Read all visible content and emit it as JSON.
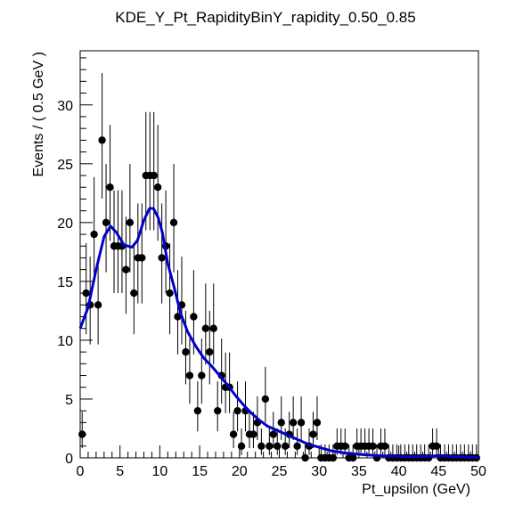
{
  "chart_data": {
    "type": "scatter",
    "title": "KDE_Y_Pt_RapidityBinY_rapidity_0.50_0.85",
    "xlabel": "Pt_upsilon (GeV)",
    "ylabel": "Events / ( 0.5 GeV )",
    "xlim": [
      0,
      50
    ],
    "ylim": [
      0,
      34.6
    ],
    "x_ticks": [
      0,
      5,
      10,
      15,
      20,
      25,
      30,
      35,
      40,
      45,
      50
    ],
    "y_ticks": [
      0,
      5,
      10,
      15,
      20,
      25,
      30
    ],
    "grid": false,
    "legend": "none",
    "colors": {
      "points": "#000000",
      "curve": "#0000cc",
      "axes": "#000000"
    },
    "series": [
      {
        "kind": "points_with_errors",
        "x": [
          0.25,
          0.75,
          1.25,
          1.75,
          2.25,
          2.75,
          3.25,
          3.75,
          4.25,
          4.75,
          5.25,
          5.75,
          6.25,
          6.75,
          7.25,
          7.75,
          8.25,
          8.75,
          9.25,
          9.75,
          10.25,
          10.75,
          11.25,
          11.75,
          12.25,
          12.75,
          13.25,
          13.75,
          14.25,
          14.75,
          15.25,
          15.75,
          16.25,
          16.75,
          17.25,
          17.75,
          18.25,
          18.75,
          19.25,
          19.75,
          20.25,
          20.75,
          21.25,
          21.75,
          22.25,
          22.75,
          23.25,
          23.75,
          24.25,
          24.75,
          25.25,
          25.75,
          26.25,
          26.75,
          27.25,
          27.75,
          28.25,
          28.75,
          29.25,
          29.75,
          30.25,
          30.75,
          31.25,
          31.75,
          32.25,
          32.75,
          33.25,
          33.75,
          34.25,
          34.75,
          35.25,
          35.75,
          36.25,
          36.75,
          37.25,
          37.75,
          38.25,
          38.75,
          39.25,
          39.75,
          40.25,
          40.75,
          41.25,
          41.75,
          42.25,
          42.75,
          43.25,
          43.75,
          44.25,
          44.75,
          45.25,
          45.75,
          46.25,
          46.75,
          47.25,
          47.75,
          48.25,
          48.75,
          49.25,
          49.75
        ],
        "y": [
          2,
          14,
          13,
          19,
          13,
          27,
          20,
          23,
          18,
          18,
          18,
          16,
          20,
          14,
          17,
          17,
          24,
          24,
          24,
          23,
          17,
          18,
          14,
          20,
          12,
          13,
          9,
          7,
          12,
          4,
          7,
          11,
          9,
          11,
          4,
          7,
          6,
          6,
          2,
          4,
          1,
          4,
          2,
          2,
          3,
          1,
          5,
          1,
          2,
          1,
          3,
          1,
          2,
          3,
          1,
          3,
          0,
          1,
          2,
          3,
          0,
          0,
          0,
          0,
          1,
          1,
          1,
          0,
          0,
          1,
          1,
          1,
          1,
          1,
          0,
          1,
          1,
          0,
          0,
          0,
          0,
          0,
          0,
          0,
          0,
          0,
          0,
          0,
          1,
          1,
          0,
          0,
          0,
          0,
          0,
          0,
          0,
          0,
          0,
          0
        ]
      },
      {
        "kind": "curve",
        "x": [
          0,
          1,
          2,
          3,
          3.8,
          4.5,
          5.5,
          6.5,
          7.2,
          8,
          8.7,
          9.2,
          9.8,
          10.3,
          11,
          11.8,
          12.6,
          13.5,
          14.5,
          15.5,
          16.5,
          17.5,
          18.5,
          19.5,
          20.5,
          21.5,
          22.5,
          23.5,
          24.5,
          25.5,
          26.5,
          27.5,
          28.5,
          29.5,
          30.5,
          31.5,
          32.5,
          33.5,
          35,
          37,
          39,
          41,
          43,
          44,
          45,
          46,
          47,
          48,
          49,
          50
        ],
        "y": [
          11,
          12.8,
          16,
          18.8,
          19.7,
          19.2,
          18.1,
          17.9,
          18.5,
          20.2,
          21.2,
          21.2,
          20.4,
          19.2,
          16.5,
          14.5,
          12.3,
          10.7,
          9.5,
          8.5,
          7.8,
          7,
          6.2,
          5.3,
          4.5,
          3.8,
          3.2,
          2.7,
          2.4,
          2.1,
          1.8,
          1.5,
          1.2,
          1,
          0.8,
          0.6,
          0.5,
          0.4,
          0.3,
          0.2,
          0.15,
          0.1,
          0.1,
          0.15,
          0.2,
          0.15,
          0.1,
          0.1,
          0.05,
          0.05
        ]
      }
    ]
  }
}
